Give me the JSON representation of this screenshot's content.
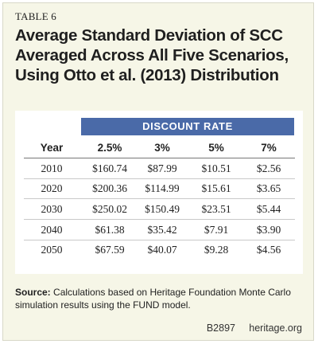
{
  "table_label": "TABLE 6",
  "title_lines": [
    "Average Standard Deviation of SCC",
    "Averaged Across All Five Scenarios,",
    "Using Otto et al. (2013) Distribution"
  ],
  "group_header": "DISCOUNT RATE",
  "columns": [
    "Year",
    "2.5%",
    "3%",
    "5%",
    "7%"
  ],
  "rows": [
    [
      "2010",
      "$160.74",
      "$87.99",
      "$10.51",
      "$2.56"
    ],
    [
      "2020",
      "$200.36",
      "$114.99",
      "$15.61",
      "$3.65"
    ],
    [
      "2030",
      "$250.02",
      "$150.49",
      "$23.51",
      "$5.44"
    ],
    [
      "2040",
      "$61.38",
      "$35.42",
      "$7.91",
      "$3.90"
    ],
    [
      "2050",
      "$67.59",
      "$40.07",
      "$9.28",
      "$4.56"
    ]
  ],
  "source": {
    "label": "Source:",
    "text": "Calculations based on Heritage Foundation Monte Carlo simulation results using the FUND model."
  },
  "footer": {
    "code": "B2897",
    "site": "heritage.org"
  },
  "colors": {
    "card_background": "#f6f6e7",
    "header_band": "#4a6aa8",
    "panel_background": "#ffffff"
  }
}
